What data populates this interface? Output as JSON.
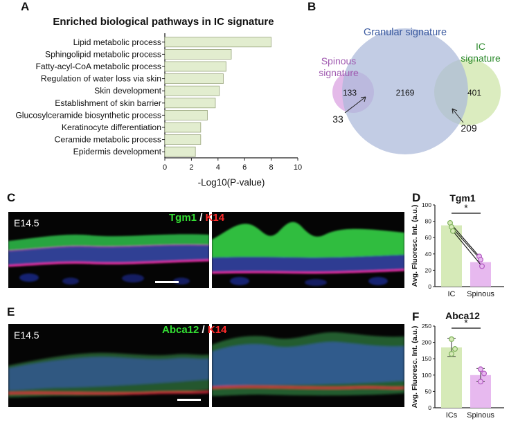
{
  "panels": {
    "A": "A",
    "B": "B",
    "C": "C",
    "D": "D",
    "E": "E",
    "F": "F"
  },
  "chart_data": [
    {
      "id": "A",
      "type": "bar",
      "orientation": "horizontal",
      "title": "Enriched biological pathways in IC signature",
      "xlabel": "-Log10(P-value)",
      "ylabel": "",
      "xlim": [
        0,
        10
      ],
      "xticks": [
        0,
        2,
        4,
        6,
        8,
        10
      ],
      "categories": [
        "Lipid metabolic process",
        "Sphingolipid metabolic process",
        "Fatty-acyl-CoA metabolic process",
        "Regulation of water loss via skin",
        "Skin development",
        "Establishment of skin barrier",
        "Glucosylceramide biosynthetic process",
        "Keratinocyte differentiation",
        "Ceramide metabolic process",
        "Epidermis development"
      ],
      "values": [
        8.0,
        5.0,
        4.6,
        4.4,
        4.1,
        3.8,
        3.2,
        2.7,
        2.7,
        2.3
      ],
      "bar_color": "#e2edcf",
      "bar_stroke": "#9aa57d",
      "grid": false
    },
    {
      "id": "B",
      "type": "venn",
      "sets": [
        {
          "name": "Spinous signature",
          "label_lines": [
            "Spinous",
            "signature"
          ],
          "only": 133,
          "color": "#e3b6e8",
          "label_color": "#a05ab0"
        },
        {
          "name": "Granular signature",
          "label_lines": [
            "Granular signature"
          ],
          "only": 2169,
          "color": "#aab9d9",
          "label_color": "#3b5aa0"
        },
        {
          "name": "IC signature",
          "label_lines": [
            "IC",
            "signature"
          ],
          "only": 401,
          "color": "#d7eab8",
          "label_color": "#2e8b2e"
        }
      ],
      "overlaps": [
        {
          "sets": [
            "Spinous signature",
            "Granular signature"
          ],
          "value": 33
        },
        {
          "sets": [
            "Granular signature",
            "IC signature"
          ],
          "value": 209
        }
      ]
    },
    {
      "id": "D",
      "type": "bar",
      "title": "Tgm1",
      "ylabel": "Avg. Fluoresc. Int. (a.u.)",
      "xlabel": "",
      "ylim": [
        0,
        100
      ],
      "yticks": [
        0,
        20,
        40,
        60,
        80,
        100
      ],
      "categories": [
        "IC",
        "Spinous"
      ],
      "values": [
        75,
        30
      ],
      "colors": [
        "#d6eab8",
        "#e7b9ef"
      ],
      "points": {
        "IC": [
          78,
          73,
          68
        ],
        "Spinous": [
          37,
          33,
          25
        ]
      },
      "paired": true,
      "significance": "*"
    },
    {
      "id": "F",
      "type": "bar",
      "title": "Abca12",
      "ylabel": "Avg. Fluoresc. Int. (a.u.)",
      "xlabel": "",
      "ylim": [
        0,
        250
      ],
      "yticks": [
        0,
        50,
        100,
        150,
        200,
        250
      ],
      "categories": [
        "ICs",
        "Spinous"
      ],
      "values": [
        185,
        100
      ],
      "errors": [
        28,
        20
      ],
      "colors": [
        "#d6eab8",
        "#e7b9ef"
      ],
      "points": {
        "ICs": [
          210,
          180,
          165
        ],
        "Spinous": [
          118,
          105,
          80
        ]
      },
      "paired": false,
      "significance": "*"
    }
  ],
  "micrographs": {
    "C": {
      "stage": "E14.5",
      "marker1": "Tgm1",
      "slash": "/",
      "marker2": "K14",
      "marker1_color": "#33dd33",
      "marker2_color": "#ff2b2b"
    },
    "E": {
      "stage": "E14.5",
      "marker1": "Abca12",
      "slash": "/",
      "marker2": "K14",
      "marker1_color": "#33dd33",
      "marker2_color": "#ff2b2b"
    }
  }
}
